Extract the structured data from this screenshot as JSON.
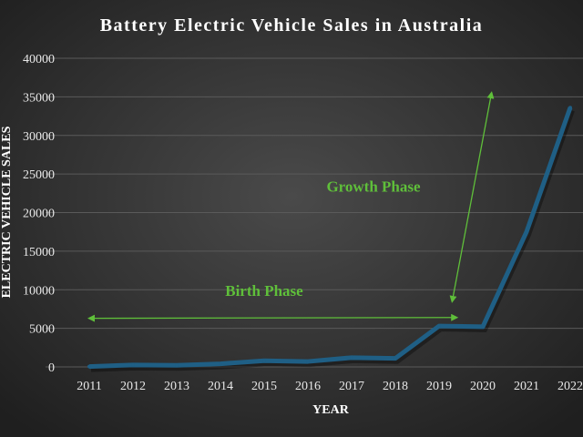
{
  "chart_data": {
    "type": "line",
    "title": "Battery Electric Vehicle Sales in Australia",
    "xlabel": "YEAR",
    "ylabel": "ELECTRIC VEHICLE SALES",
    "categories": [
      "2011",
      "2012",
      "2013",
      "2014",
      "2015",
      "2016",
      "2017",
      "2018",
      "2019",
      "2020",
      "2021",
      "2022"
    ],
    "values": [
      50,
      250,
      200,
      400,
      800,
      700,
      1200,
      1100,
      5300,
      5200,
      17500,
      33600
    ],
    "ylim": [
      0,
      40000
    ],
    "yticks": [
      0,
      5000,
      10000,
      15000,
      20000,
      25000,
      30000,
      35000,
      40000
    ],
    "grid": true,
    "legend": "none",
    "colors": {
      "line": "#1f5f85",
      "annotation": "#5fbf3a",
      "background": "#333333",
      "text": "#ffffff"
    },
    "annotations": [
      {
        "text": "Birth Phase",
        "arrow": "double",
        "from": [
          2011,
          6300
        ],
        "to": [
          2019.4,
          6400
        ],
        "label_at": [
          2015,
          9200
        ]
      },
      {
        "text": "Growth Phase",
        "arrow": "double",
        "from": [
          2019.3,
          8500
        ],
        "to": [
          2020.2,
          35500
        ],
        "label_at": [
          2017.5,
          22700
        ]
      }
    ]
  }
}
